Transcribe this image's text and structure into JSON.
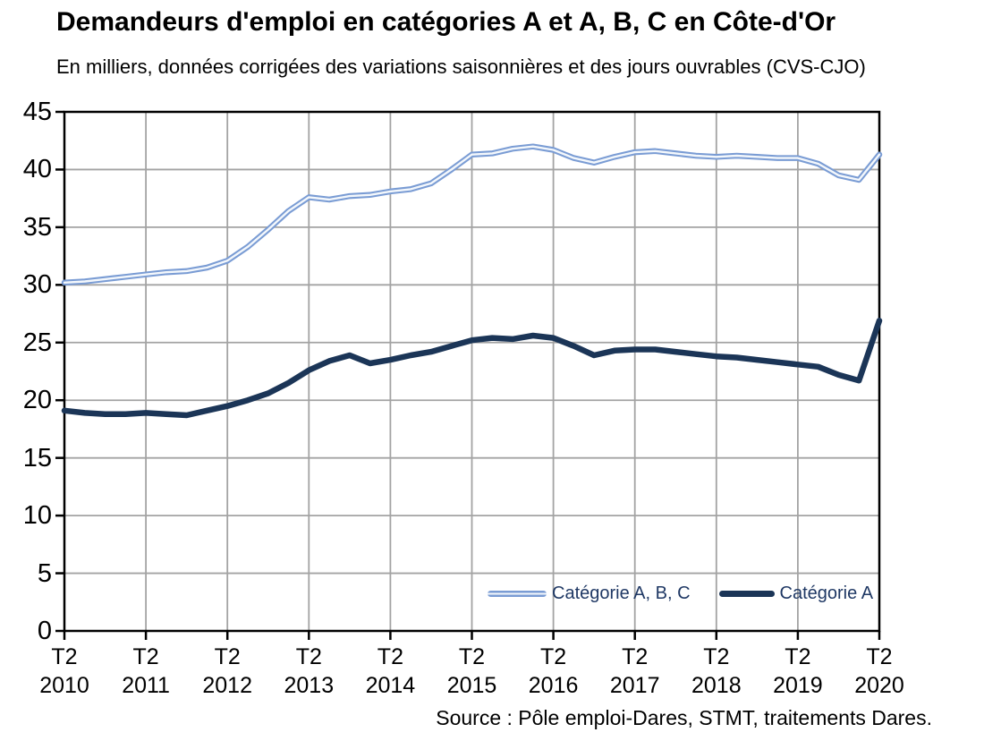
{
  "chart_data": {
    "type": "line",
    "title": "Demandeurs d'emploi en catégories A et A, B, C en Côte-d'Or",
    "subtitle": "En milliers, données corrigées des variations saisonnières et des jours ouvrables (CVS-CJO)",
    "source": "Source : Pôle emploi-Dares, STMT, traitements Dares.",
    "x_frequency": "quarterly",
    "x_start": "T2 2010",
    "x_end": "T2 2020",
    "x_ticks": [
      {
        "quarter": "T2",
        "year": "2010"
      },
      {
        "quarter": "T2",
        "year": "2011"
      },
      {
        "quarter": "T2",
        "year": "2012"
      },
      {
        "quarter": "T2",
        "year": "2013"
      },
      {
        "quarter": "T2",
        "year": "2014"
      },
      {
        "quarter": "T2",
        "year": "2015"
      },
      {
        "quarter": "T2",
        "year": "2016"
      },
      {
        "quarter": "T2",
        "year": "2017"
      },
      {
        "quarter": "T2",
        "year": "2018"
      },
      {
        "quarter": "T2",
        "year": "2019"
      },
      {
        "quarter": "T2",
        "year": "2020"
      }
    ],
    "ylim": [
      0,
      45
    ],
    "y_ticks": [
      0,
      5,
      10,
      15,
      20,
      25,
      30,
      35,
      40,
      45
    ],
    "grid": true,
    "legend_position": "bottom-inside",
    "colors": {
      "abc_line": "#7A9CD4",
      "abc_core": "#F4F8FC",
      "a_line": "#1B3557",
      "grid": "#A3A3A3",
      "axis": "#000000",
      "legend_text": "#1F3864"
    },
    "series": [
      {
        "name": "Catégorie A, B, C",
        "color": "#7A9CD4",
        "line_style": "double-white-core",
        "values": [
          30.2,
          30.3,
          30.5,
          30.7,
          30.9,
          31.1,
          31.2,
          31.5,
          32.1,
          33.3,
          34.8,
          36.4,
          37.6,
          37.4,
          37.7,
          37.8,
          38.1,
          38.3,
          38.8,
          40.0,
          41.3,
          41.4,
          41.8,
          42.0,
          41.7,
          41.0,
          40.6,
          41.1,
          41.5,
          41.6,
          41.4,
          41.2,
          41.1,
          41.2,
          41.1,
          41.0,
          41.0,
          40.5,
          39.5,
          39.1,
          41.3
        ]
      },
      {
        "name": "Catégorie A",
        "color": "#1B3557",
        "line_style": "solid",
        "values": [
          19.1,
          18.9,
          18.8,
          18.8,
          18.9,
          18.8,
          18.7,
          19.1,
          19.5,
          20.0,
          20.6,
          21.5,
          22.6,
          23.4,
          23.9,
          23.2,
          23.5,
          23.9,
          24.2,
          24.7,
          25.2,
          25.4,
          25.3,
          25.6,
          25.4,
          24.7,
          23.9,
          24.3,
          24.4,
          24.4,
          24.2,
          24.0,
          23.8,
          23.7,
          23.5,
          23.3,
          23.1,
          22.9,
          22.2,
          21.7,
          26.9
        ]
      }
    ]
  }
}
